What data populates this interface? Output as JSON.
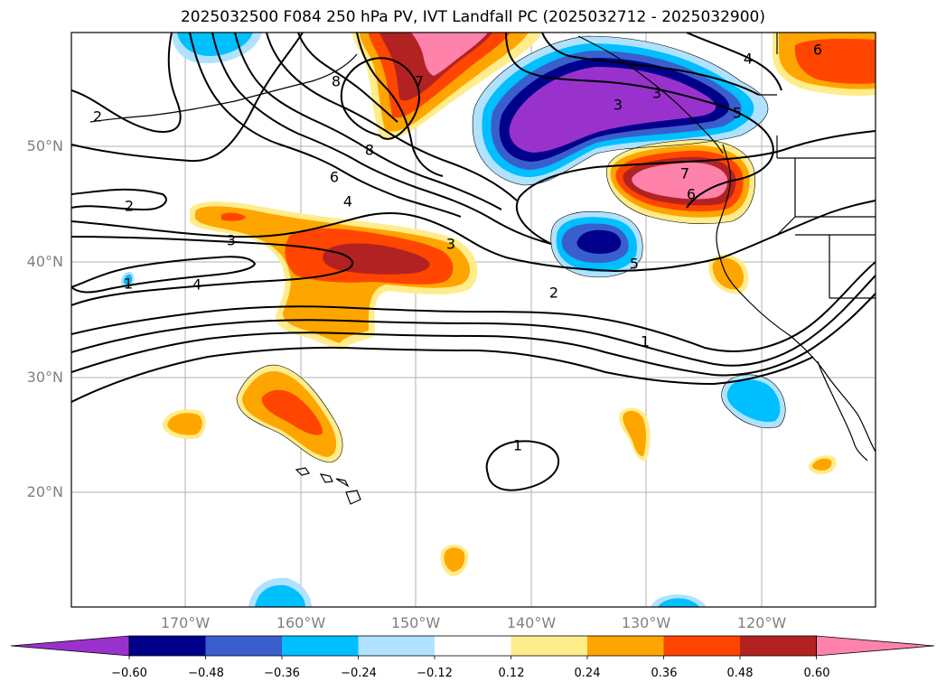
{
  "title": "2025032500 F084 250 hPa PV, IVT Landfall PC (2025032712 - 2025032900)",
  "map": {
    "lat_labels": [
      "50°N",
      "40°N",
      "30°N",
      "20°N"
    ],
    "lon_labels": [
      "170°W",
      "160°W",
      "150°W",
      "140°W",
      "130°W",
      "120°W"
    ],
    "contour_labels": [
      "2",
      "2",
      "3",
      "4",
      "6",
      "8",
      "8",
      "7",
      "1",
      "4",
      "3",
      "2",
      "1",
      "5",
      "6",
      "7",
      "3",
      "5",
      "4",
      "6",
      "1",
      "3"
    ]
  },
  "colorbar": {
    "ticks": [
      "−0.60",
      "−0.48",
      "−0.36",
      "−0.24",
      "−0.12",
      "0.12",
      "0.24",
      "0.36",
      "0.48",
      "0.60"
    ],
    "colors": [
      "#9932cc",
      "#00008b",
      "#3a5fcd",
      "#00bfff",
      "#b0e2ff",
      "#ffffff",
      "#ffec8b",
      "#ffa500",
      "#ff4500",
      "#b22222",
      "#ff82ab"
    ]
  }
}
